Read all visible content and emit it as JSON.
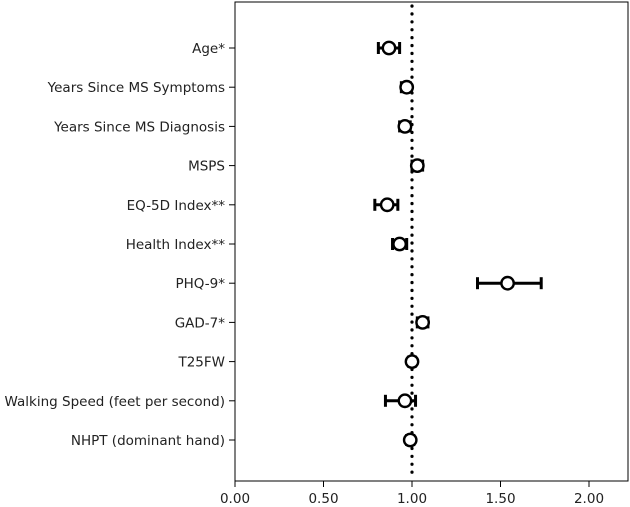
{
  "chart_data": {
    "type": "forest",
    "title": "",
    "xlabel": "",
    "ylabel": "",
    "xlim": [
      0,
      2.2
    ],
    "xticks": [
      0.0,
      0.5,
      1.0,
      1.5,
      2.0
    ],
    "xtick_labels": [
      "0.00",
      "0.50",
      "1.00",
      "1.50",
      "2.00"
    ],
    "reference_line": 1.0,
    "rows": [
      {
        "label": "Age*",
        "estimate": 0.87,
        "ci_low": 0.81,
        "ci_high": 0.93
      },
      {
        "label": "Years Since MS Symptoms",
        "estimate": 0.97,
        "ci_low": 0.94,
        "ci_high": 0.99
      },
      {
        "label": "Years Since MS Diagnosis",
        "estimate": 0.96,
        "ci_low": 0.93,
        "ci_high": 0.99
      },
      {
        "label": "MSPS",
        "estimate": 1.03,
        "ci_low": 1.0,
        "ci_high": 1.06
      },
      {
        "label": "EQ-5D Index**",
        "estimate": 0.86,
        "ci_low": 0.79,
        "ci_high": 0.92
      },
      {
        "label": "Health Index**",
        "estimate": 0.93,
        "ci_low": 0.89,
        "ci_high": 0.97
      },
      {
        "label": "PHQ-9*",
        "estimate": 1.54,
        "ci_low": 1.37,
        "ci_high": 1.73
      },
      {
        "label": "GAD-7*",
        "estimate": 1.06,
        "ci_low": 1.03,
        "ci_high": 1.09
      },
      {
        "label": "T25FW",
        "estimate": 1.0,
        "ci_low": 0.98,
        "ci_high": 1.02
      },
      {
        "label": "Walking Speed (feet per second)",
        "estimate": 0.96,
        "ci_low": 0.85,
        "ci_high": 1.02
      },
      {
        "label": "NHPT (dominant hand)",
        "estimate": 0.99,
        "ci_low": 0.97,
        "ci_high": 1.01
      }
    ]
  }
}
